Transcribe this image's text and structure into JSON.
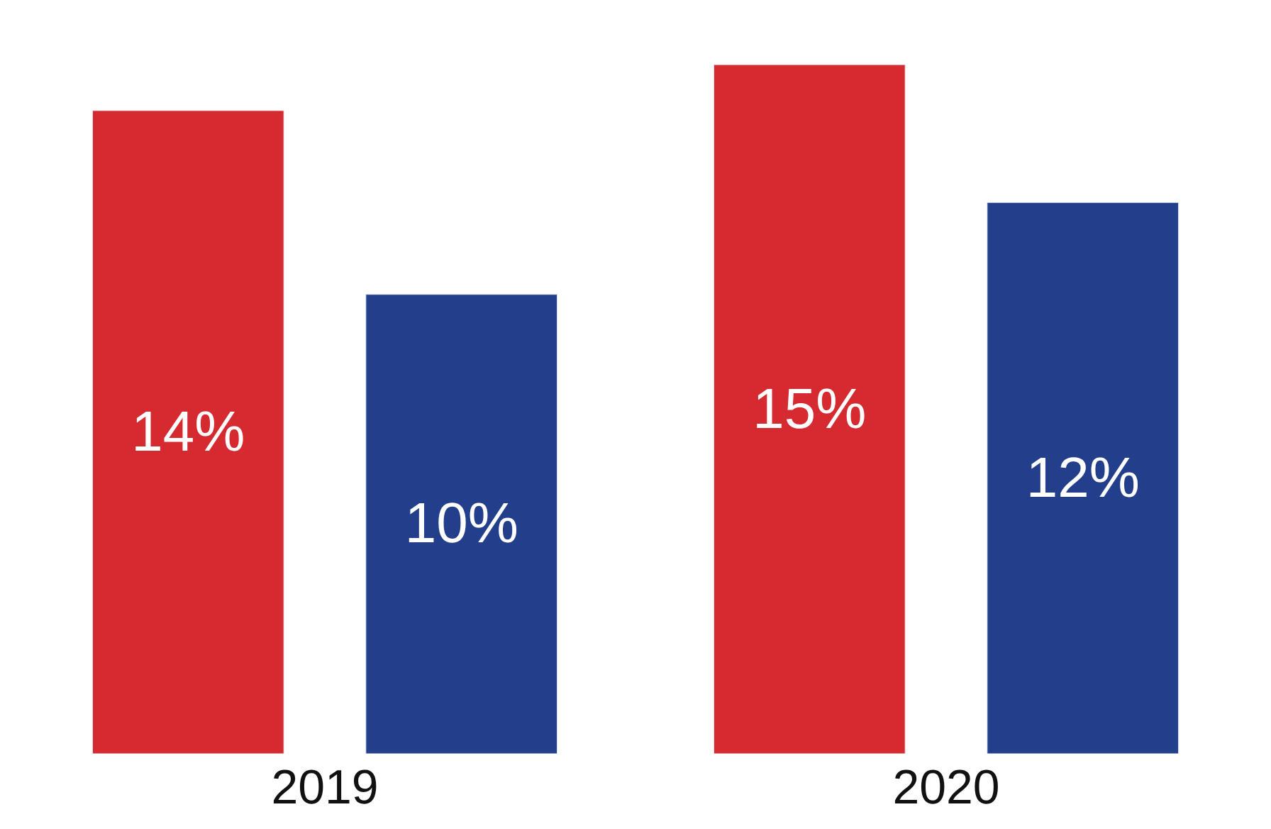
{
  "chart_data": {
    "type": "bar",
    "categories": [
      "2019",
      "2020"
    ],
    "series": [
      {
        "color": "#d42a30",
        "values": [
          14,
          15
        ],
        "value_labels": [
          "14%",
          "15%"
        ]
      },
      {
        "color": "#233f8c",
        "values": [
          10,
          12
        ],
        "value_labels": [
          "10%",
          "12%"
        ]
      }
    ],
    "tick_labels": "x"
  }
}
